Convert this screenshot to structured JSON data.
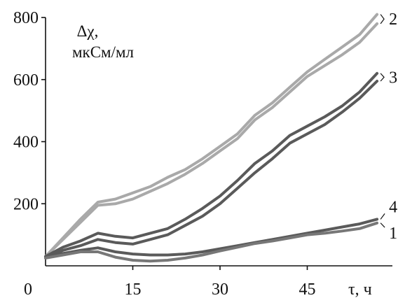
{
  "chart_data": {
    "type": "line",
    "ylabel_symbol": "Δχ,",
    "ylabel_unit": "мкСм/мл",
    "xlabel": "τ, ч",
    "xlim": [
      0,
      60
    ],
    "ylim": [
      0,
      800
    ],
    "x_ticks": [
      {
        "value": 0,
        "label": "0"
      },
      {
        "value": 15,
        "label": "15"
      },
      {
        "value": 30,
        "label": "30"
      },
      {
        "value": 45,
        "label": "45"
      }
    ],
    "y_ticks": [
      {
        "value": 200,
        "label": "200"
      },
      {
        "value": 400,
        "label": "400"
      },
      {
        "value": 600,
        "label": "600"
      },
      {
        "value": 800,
        "label": "800"
      }
    ],
    "colors": {
      "light_gray": "#a9a9a9",
      "dark_gray": "#5a5a5a",
      "mid_gray": "#777777"
    },
    "series": [
      {
        "name": "2",
        "color_key": "light_gray",
        "lines": [
          [
            [
              0,
              30
            ],
            [
              3,
              90
            ],
            [
              6,
              150
            ],
            [
              9,
              205
            ],
            [
              12,
              215
            ],
            [
              15,
              235
            ],
            [
              18,
              255
            ],
            [
              21,
              285
            ],
            [
              24,
              310
            ],
            [
              27,
              345
            ],
            [
              30,
              385
            ],
            [
              33,
              425
            ],
            [
              36,
              485
            ],
            [
              39,
              525
            ],
            [
              42,
              575
            ],
            [
              45,
              625
            ],
            [
              48,
              665
            ],
            [
              51,
              705
            ],
            [
              54,
              745
            ],
            [
              57,
              810
            ]
          ],
          [
            [
              0,
              30
            ],
            [
              3,
              85
            ],
            [
              6,
              140
            ],
            [
              9,
              195
            ],
            [
              12,
              200
            ],
            [
              15,
              215
            ],
            [
              18,
              240
            ],
            [
              21,
              265
            ],
            [
              24,
              295
            ],
            [
              27,
              330
            ],
            [
              30,
              370
            ],
            [
              33,
              410
            ],
            [
              36,
              470
            ],
            [
              39,
              510
            ],
            [
              42,
              560
            ],
            [
              45,
              610
            ],
            [
              48,
              645
            ],
            [
              51,
              680
            ],
            [
              54,
              720
            ],
            [
              57,
              780
            ]
          ]
        ]
      },
      {
        "name": "3",
        "color_key": "dark_gray",
        "lines": [
          [
            [
              0,
              30
            ],
            [
              3,
              60
            ],
            [
              6,
              80
            ],
            [
              9,
              105
            ],
            [
              12,
              95
            ],
            [
              15,
              90
            ],
            [
              18,
              105
            ],
            [
              21,
              120
            ],
            [
              24,
              150
            ],
            [
              27,
              185
            ],
            [
              30,
              225
            ],
            [
              33,
              275
            ],
            [
              36,
              330
            ],
            [
              39,
              370
            ],
            [
              42,
              420
            ],
            [
              45,
              450
            ],
            [
              48,
              480
            ],
            [
              51,
              515
            ],
            [
              54,
              560
            ],
            [
              57,
              620
            ]
          ],
          [
            [
              0,
              25
            ],
            [
              3,
              50
            ],
            [
              6,
              65
            ],
            [
              9,
              85
            ],
            [
              12,
              75
            ],
            [
              15,
              70
            ],
            [
              18,
              85
            ],
            [
              21,
              100
            ],
            [
              24,
              130
            ],
            [
              27,
              160
            ],
            [
              30,
              200
            ],
            [
              33,
              250
            ],
            [
              36,
              300
            ],
            [
              39,
              345
            ],
            [
              42,
              395
            ],
            [
              45,
              425
            ],
            [
              48,
              455
            ],
            [
              51,
              495
            ],
            [
              54,
              540
            ],
            [
              57,
              595
            ]
          ]
        ]
      },
      {
        "name": "4",
        "color_key": "dark_gray",
        "lines": [
          [
            [
              0,
              30
            ],
            [
              3,
              40
            ],
            [
              6,
              50
            ],
            [
              9,
              58
            ],
            [
              12,
              45
            ],
            [
              15,
              38
            ],
            [
              18,
              35
            ],
            [
              21,
              35
            ],
            [
              24,
              38
            ],
            [
              27,
              45
            ],
            [
              30,
              55
            ],
            [
              33,
              65
            ],
            [
              36,
              75
            ],
            [
              39,
              85
            ],
            [
              42,
              95
            ],
            [
              45,
              105
            ],
            [
              48,
              115
            ],
            [
              51,
              125
            ],
            [
              54,
              135
            ],
            [
              57,
              150
            ]
          ]
        ]
      },
      {
        "name": "1",
        "color_key": "mid_gray",
        "lines": [
          [
            [
              0,
              25
            ],
            [
              3,
              35
            ],
            [
              6,
              45
            ],
            [
              9,
              45
            ],
            [
              12,
              28
            ],
            [
              15,
              18
            ],
            [
              18,
              15
            ],
            [
              21,
              18
            ],
            [
              24,
              25
            ],
            [
              27,
              35
            ],
            [
              30,
              48
            ],
            [
              33,
              60
            ],
            [
              36,
              72
            ],
            [
              39,
              80
            ],
            [
              42,
              90
            ],
            [
              45,
              100
            ],
            [
              48,
              105
            ],
            [
              51,
              112
            ],
            [
              54,
              120
            ],
            [
              57,
              138
            ]
          ]
        ]
      }
    ]
  }
}
